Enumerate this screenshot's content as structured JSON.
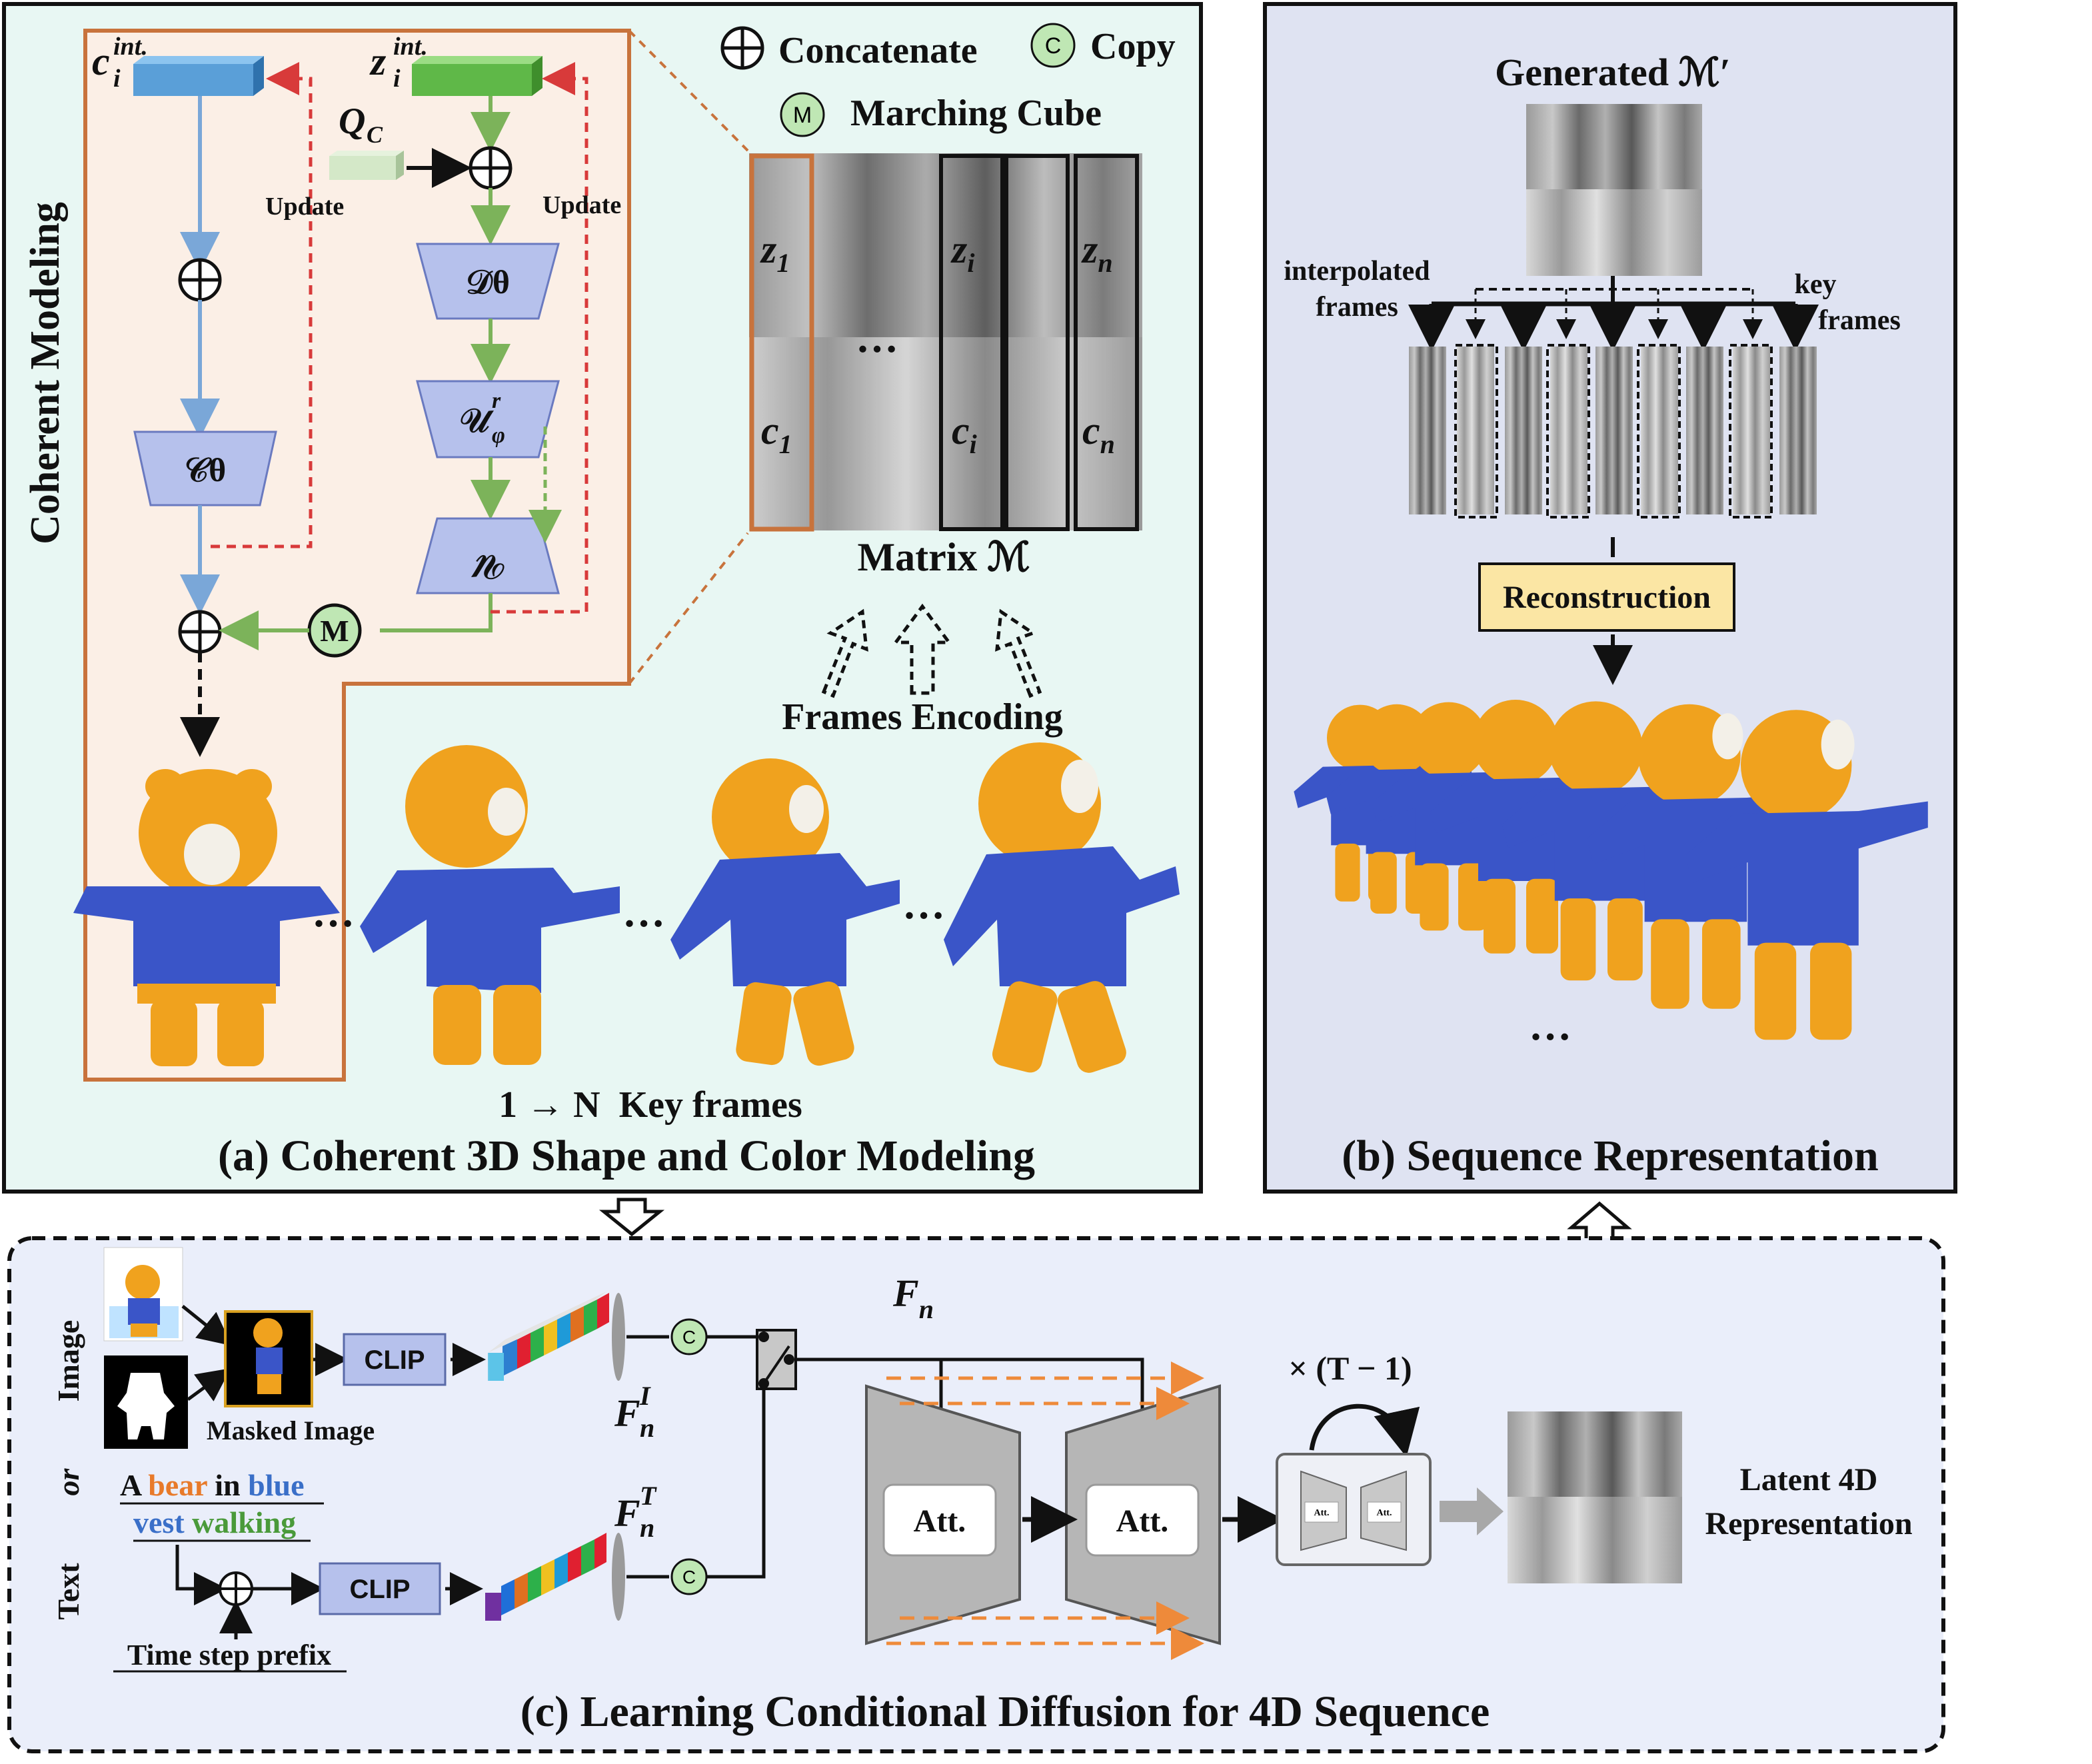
{
  "panel_a": {
    "caption": "(a) Coherent 3D Shape and Color Modeling",
    "side_title": "Coherent Modeling",
    "legend": {
      "concat": "Concatenate",
      "copy": "Copy",
      "march": "Marching Cube",
      "copy_glyph": "C",
      "march_glyph": "M"
    },
    "update_left": "Update",
    "update_right": "Update",
    "c_int_base": "c",
    "c_int_sup": "int.",
    "c_int_sub": "i",
    "z_int_base": "z",
    "z_int_sup": "int.",
    "z_int_sub": "i",
    "qc_base": "Q",
    "qc_sub": "C",
    "d_theta": "𝒟θ",
    "u_phi": "𝒰",
    "u_phi_sub": "φ",
    "u_phi_sup": "r",
    "c_theta": "𝒞θ",
    "m_glyph": "M",
    "matrix": {
      "label": "Matrix ℳ",
      "z1": "z",
      "z1_sub": "1",
      "zi": "z",
      "zi_sub": "i",
      "zn": "z",
      "zn_sub": "n",
      "c1": "c",
      "c1_sub": "1",
      "ci": "c",
      "ci_sub": "i",
      "cn": "c",
      "cn_sub": "n",
      "ellipsis": "…"
    },
    "frames_encoding": "Frames Encoding",
    "keyframes_label": "1 → N  Key frames",
    "ellipsis": "…"
  },
  "panel_b": {
    "caption": "(b) Sequence Representation",
    "generated": "Generated ℳ′",
    "interp_line1": "interpolated",
    "interp_line2": "frames",
    "key_line1": "key",
    "key_line2": "frames",
    "reconstruction": "Reconstruction",
    "ellipsis": "…"
  },
  "panel_c": {
    "caption": "(c) Learning Conditional Diffusion for 4D Sequence",
    "image_label": "Image",
    "or_label": "or",
    "text_label": "Text",
    "masked_image": "Masked Image",
    "clip": "CLIP",
    "fn": "F",
    "fn_sub": "n",
    "fni_sup": "I",
    "fnt_sup": "T",
    "copy_glyph": "C",
    "prompt_line1": [
      "A ",
      "bear",
      " in ",
      "blue"
    ],
    "prompt_line2": [
      "vest",
      " ",
      "walking"
    ],
    "time_step": "Time step prefix",
    "att": "Att.",
    "repeat": "× (T − 1)",
    "latent_line1": "Latent 4D",
    "latent_line2": "Representation"
  },
  "colors": {
    "panel_a_bg": "#e8f7f3",
    "panel_b_bg": "#dfe3f2",
    "panel_c_bg": "#eaeefa",
    "coherent_bg": "#fbefe6",
    "orange_border": "#c8733c",
    "trapezoid": "#b6c1ec",
    "c_block": "#5a9fd8",
    "z_block": "#5fb848",
    "update_red": "#d83a3a",
    "arrow_blue": "#7aa7d8",
    "arrow_green": "#7cb35a",
    "bear_orange": "#f0a21e",
    "bear_blue": "#3a55c8",
    "prompt_orange": "#e87a2a",
    "prompt_blue": "#3a6fc8",
    "prompt_green": "#4a9a3a",
    "reconstruction_bg": "#fbe6a4"
  }
}
